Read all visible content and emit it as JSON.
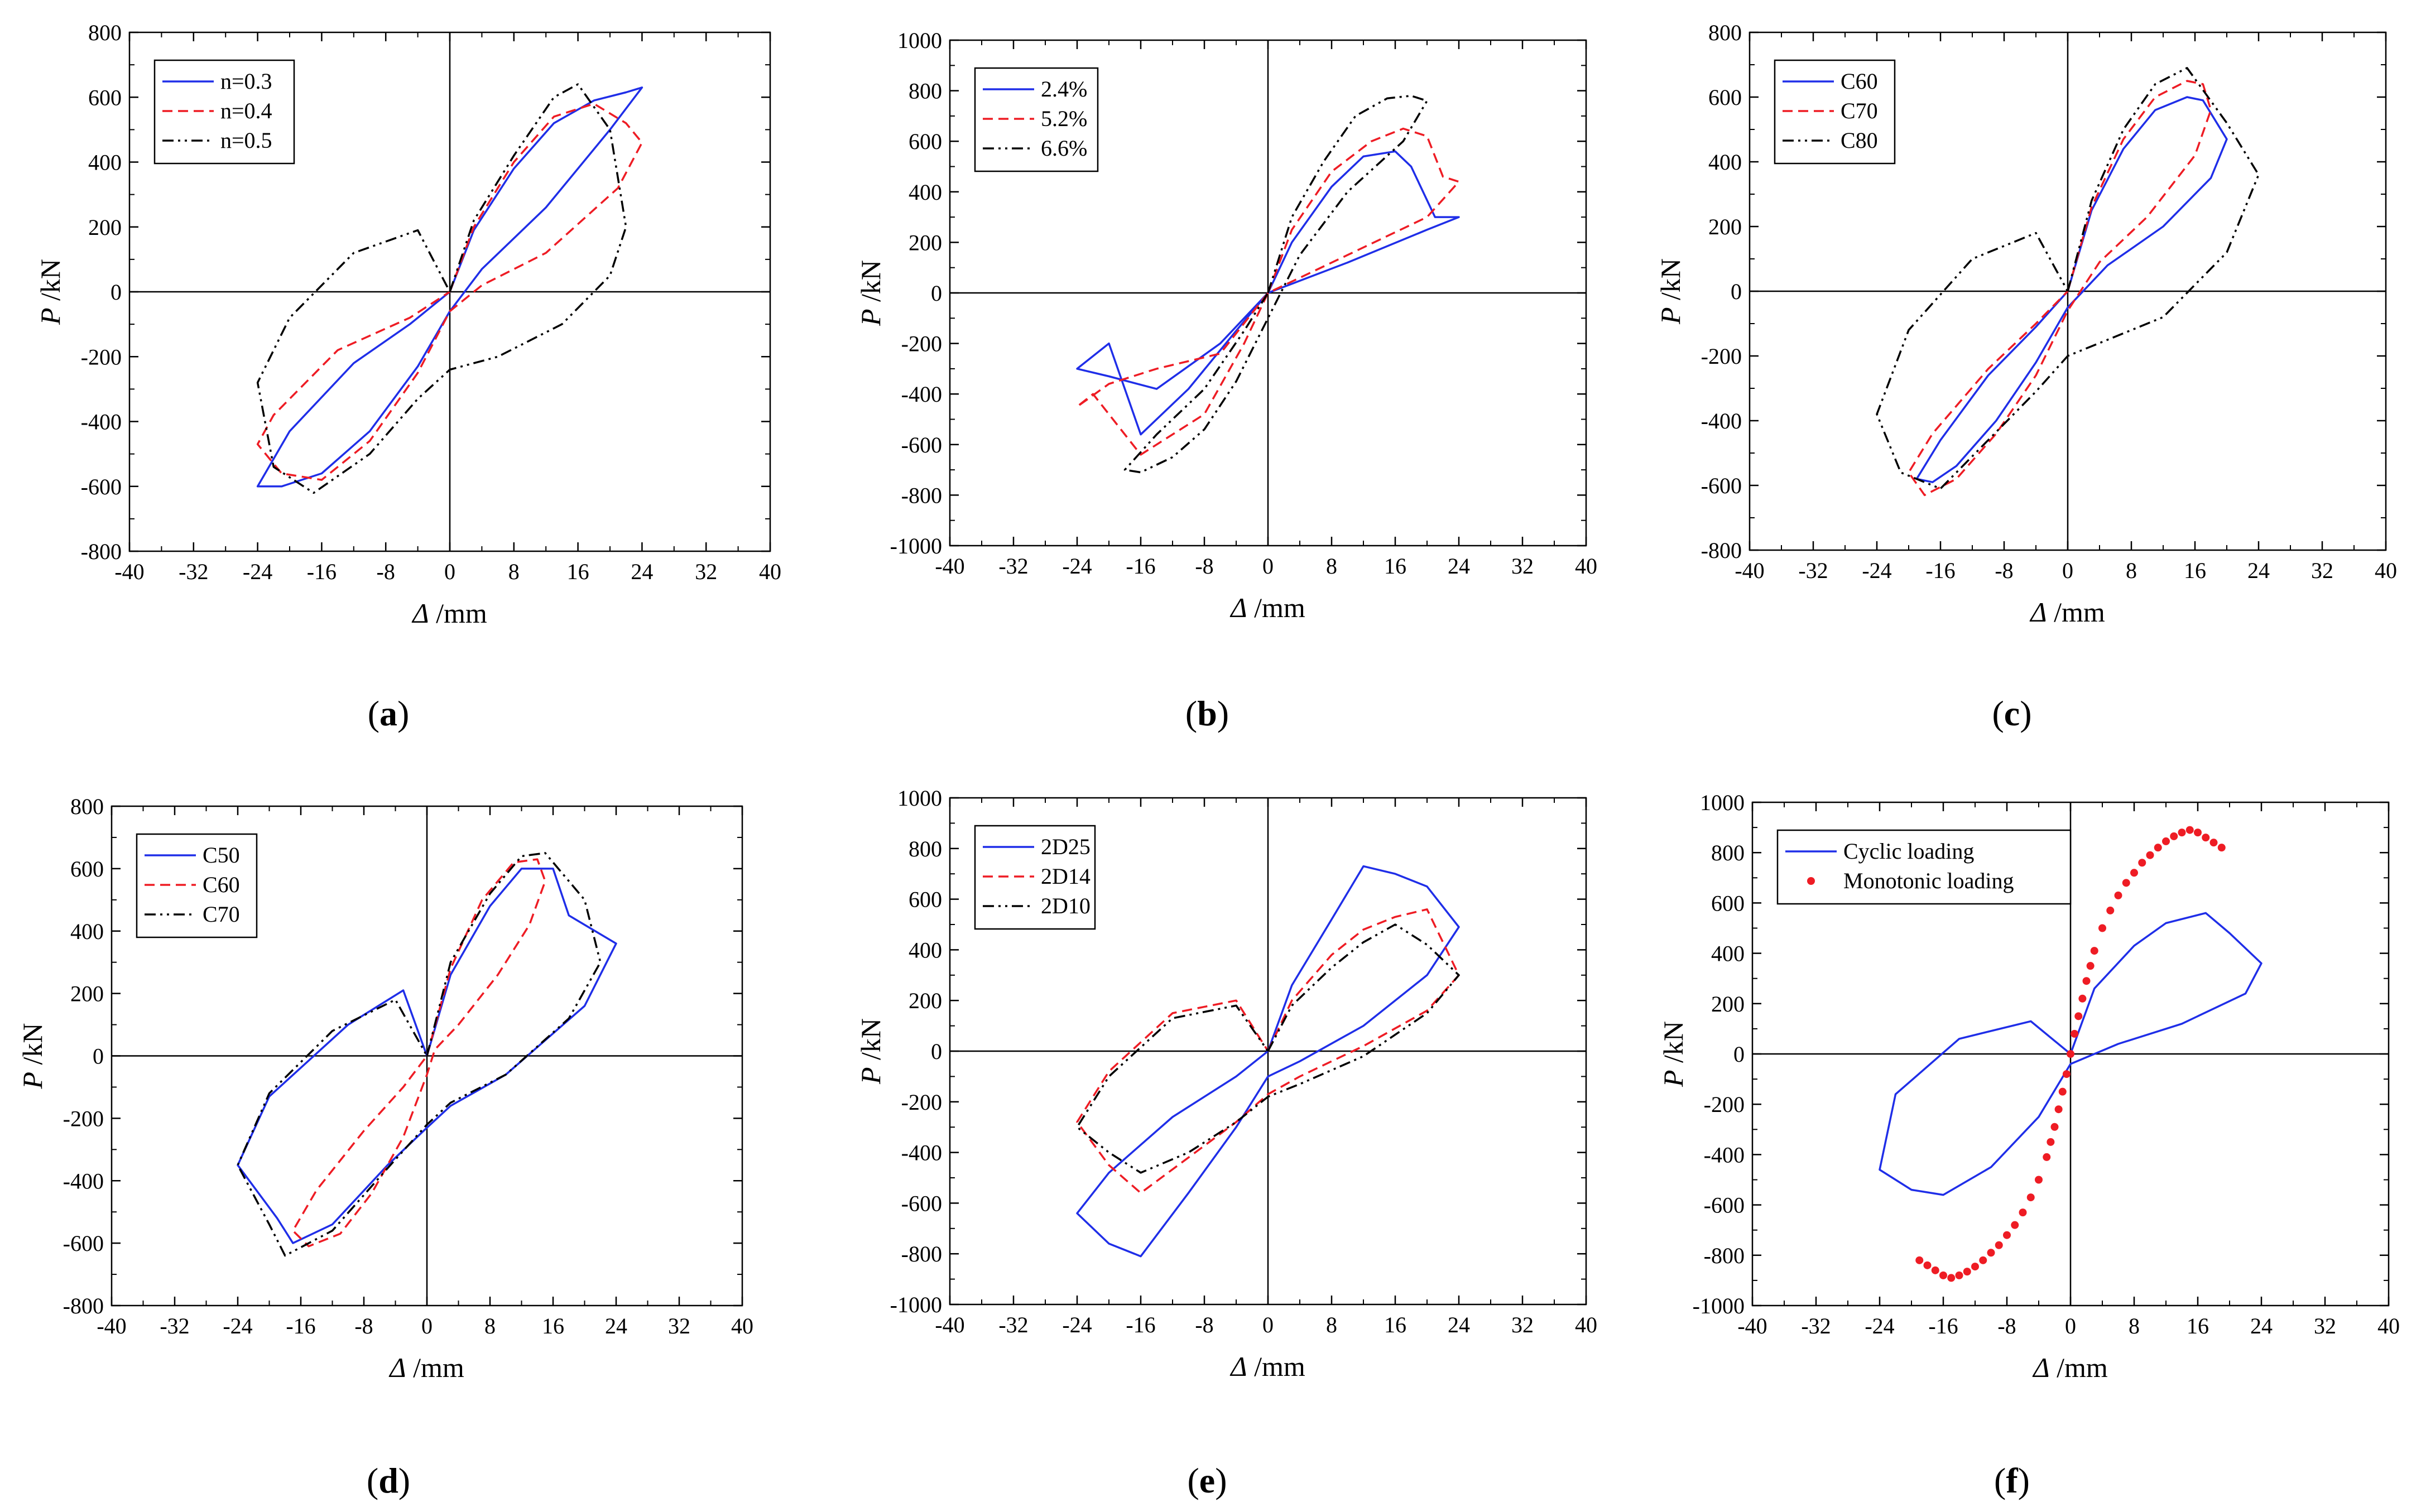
{
  "colors": {
    "blue": "#1f2ee8",
    "red": "#ee1c24",
    "black": "#000000"
  },
  "chart_data": [
    {
      "panel": "a",
      "type": "line",
      "x_symbol": "Δ",
      "x_unit": "/mm",
      "y_symbol": "P",
      "y_unit": "/kN",
      "xlim": [
        -40,
        40
      ],
      "ylim": [
        -800,
        800
      ],
      "xticks": [
        "-40",
        "-32",
        "-24",
        "-16",
        "-8",
        "0",
        "8",
        "16",
        "24",
        "32",
        "40"
      ],
      "yticks": [
        "-800",
        "-600",
        "-400",
        "-200",
        "0",
        "200",
        "400",
        "600",
        "800"
      ],
      "legend_position": "top-left",
      "series": [
        {
          "name": "n=0.3",
          "color": "#1f2ee8",
          "style": "solid",
          "x": [
            0,
            3,
            8,
            13,
            18,
            22,
            24,
            20,
            12,
            4,
            0,
            -4,
            -10,
            -16,
            -21,
            -24,
            -20,
            -12,
            -5,
            0
          ],
          "y": [
            0,
            190,
            380,
            520,
            590,
            615,
            630,
            500,
            260,
            70,
            -60,
            -230,
            -430,
            -560,
            -600,
            -600,
            -430,
            -220,
            -100,
            0
          ]
        },
        {
          "name": "n=0.4",
          "color": "#ee1c24",
          "style": "dashed",
          "x": [
            0,
            3,
            8,
            13,
            18,
            22,
            24,
            21,
            12,
            4,
            0,
            -4,
            -10,
            -16,
            -21,
            -24,
            -22,
            -14,
            -5,
            0
          ],
          "y": [
            0,
            200,
            400,
            540,
            580,
            520,
            460,
            320,
            120,
            20,
            -60,
            -250,
            -460,
            -580,
            -560,
            -470,
            -380,
            -180,
            -80,
            0
          ]
        },
        {
          "name": "n=0.5",
          "color": "#000000",
          "style": "dashdot",
          "x": [
            0,
            3,
            8,
            13,
            16,
            20,
            22,
            20,
            14,
            6,
            0,
            -4,
            -10,
            -17,
            -22,
            -24,
            -20,
            -12,
            -4,
            0
          ],
          "y": [
            0,
            220,
            420,
            600,
            640,
            500,
            200,
            50,
            -100,
            -200,
            -240,
            -330,
            -500,
            -620,
            -540,
            -280,
            -80,
            120,
            190,
            0
          ]
        }
      ]
    },
    {
      "panel": "b",
      "type": "line",
      "x_symbol": "Δ",
      "x_unit": "/mm",
      "y_symbol": "P",
      "y_unit": "/kN",
      "xlim": [
        -40,
        40
      ],
      "ylim": [
        -1000,
        1000
      ],
      "xticks": [
        "-40",
        "-32",
        "-24",
        "-16",
        "-8",
        "0",
        "8",
        "16",
        "24",
        "32",
        "40"
      ],
      "yticks": [
        "-1000",
        "-800",
        "-600",
        "-400",
        "-200",
        "0",
        "200",
        "400",
        "600",
        "800",
        "1000"
      ],
      "legend_position": "top-left",
      "series": [
        {
          "name": "2.4%",
          "color": "#1f2ee8",
          "style": "solid",
          "x": [
            0,
            3,
            8,
            12,
            16,
            18,
            21,
            24,
            20,
            10,
            0,
            -6,
            -14,
            -20,
            -24,
            -20,
            -16,
            -10,
            -4,
            0
          ],
          "y": [
            0,
            200,
            420,
            540,
            560,
            500,
            300,
            300,
            250,
            120,
            0,
            -200,
            -380,
            -330,
            -300,
            -200,
            -560,
            -380,
            -150,
            0
          ]
        },
        {
          "name": "5.2%",
          "color": "#ee1c24",
          "style": "dashed",
          "x": [
            0,
            3,
            8,
            13,
            17,
            20,
            22,
            24,
            20,
            10,
            0,
            -6,
            -14,
            -20,
            -24,
            -22,
            -16,
            -8,
            -3,
            0
          ],
          "y": [
            0,
            250,
            480,
            600,
            650,
            620,
            460,
            440,
            300,
            150,
            0,
            -240,
            -300,
            -360,
            -450,
            -400,
            -640,
            -480,
            -200,
            0
          ]
        },
        {
          "name": "6.6%",
          "color": "#000000",
          "style": "dashdot",
          "x": [
            0,
            3,
            7,
            11,
            15,
            18,
            20,
            17,
            10,
            4,
            0,
            -4,
            -8,
            -12,
            -16,
            -18,
            -14,
            -8,
            -3,
            0
          ],
          "y": [
            0,
            300,
            520,
            700,
            770,
            780,
            760,
            600,
            400,
            150,
            -100,
            -350,
            -540,
            -650,
            -710,
            -700,
            -560,
            -380,
            -150,
            0
          ]
        }
      ]
    },
    {
      "panel": "c",
      "type": "line",
      "x_symbol": "Δ",
      "x_unit": "/mm",
      "y_symbol": "P",
      "y_unit": "/kN",
      "xlim": [
        -40,
        40
      ],
      "ylim": [
        -800,
        800
      ],
      "xticks": [
        "-40",
        "-32",
        "-24",
        "-16",
        "-8",
        "0",
        "8",
        "16",
        "24",
        "32",
        "40"
      ],
      "yticks": [
        "-800",
        "-600",
        "-400",
        "-200",
        "0",
        "200",
        "400",
        "600",
        "800"
      ],
      "legend_position": "top-left",
      "series": [
        {
          "name": "C60",
          "color": "#1f2ee8",
          "style": "solid",
          "x": [
            0,
            3,
            7,
            11,
            15,
            17,
            20,
            18,
            12,
            5,
            0,
            -4,
            -9,
            -14,
            -17,
            -19,
            -16,
            -10,
            -4,
            0
          ],
          "y": [
            0,
            250,
            440,
            560,
            600,
            590,
            470,
            350,
            200,
            80,
            -50,
            -220,
            -400,
            -540,
            -590,
            -580,
            -460,
            -260,
            -110,
            0
          ]
        },
        {
          "name": "C70",
          "color": "#ee1c24",
          "style": "dashed",
          "x": [
            0,
            3,
            7,
            11,
            15,
            17,
            18,
            16,
            10,
            4,
            0,
            -4,
            -9,
            -14,
            -18,
            -20,
            -17,
            -10,
            -4,
            0
          ],
          "y": [
            0,
            260,
            470,
            600,
            650,
            640,
            560,
            420,
            230,
            90,
            -60,
            -260,
            -440,
            -580,
            -630,
            -560,
            -440,
            -240,
            -100,
            0
          ]
        },
        {
          "name": "C80",
          "color": "#000000",
          "style": "dashdot",
          "x": [
            0,
            3,
            7,
            11,
            15,
            20,
            24,
            20,
            12,
            5,
            0,
            -4,
            -10,
            -16,
            -21,
            -24,
            -20,
            -12,
            -4,
            0
          ],
          "y": [
            0,
            280,
            500,
            640,
            690,
            520,
            360,
            120,
            -80,
            -150,
            -200,
            -310,
            -460,
            -610,
            -560,
            -380,
            -120,
            100,
            180,
            0
          ]
        }
      ]
    },
    {
      "panel": "d",
      "type": "line",
      "x_symbol": "Δ",
      "x_unit": "/mm",
      "y_symbol": "P",
      "y_unit": "/kN",
      "xlim": [
        -40,
        40
      ],
      "ylim": [
        -800,
        800
      ],
      "xticks": [
        "-40",
        "-32",
        "-24",
        "-16",
        "-8",
        "0",
        "8",
        "16",
        "24",
        "32",
        "40"
      ],
      "yticks": [
        "-800",
        "-600",
        "-400",
        "-200",
        "0",
        "200",
        "400",
        "600",
        "800"
      ],
      "legend_position": "top-left",
      "series": [
        {
          "name": "C50",
          "color": "#1f2ee8",
          "style": "solid",
          "x": [
            0,
            3,
            8,
            12,
            16,
            18,
            24,
            20,
            10,
            3,
            0,
            -5,
            -12,
            -17,
            -19,
            -24,
            -20,
            -10,
            -3,
            0
          ],
          "y": [
            0,
            260,
            480,
            600,
            600,
            450,
            360,
            160,
            -60,
            -160,
            -230,
            -350,
            -540,
            -600,
            -520,
            -350,
            -130,
            100,
            210,
            0
          ]
        },
        {
          "name": "C60",
          "color": "#ee1c24",
          "style": "dashed",
          "x": [
            0,
            3,
            7,
            11,
            14,
            15,
            13,
            9,
            4,
            1,
            0,
            -3,
            -7,
            -11,
            -15,
            -17,
            -14,
            -8,
            -3,
            0
          ],
          "y": [
            0,
            280,
            500,
            620,
            630,
            560,
            420,
            260,
            100,
            20,
            -60,
            -260,
            -440,
            -570,
            -610,
            -560,
            -430,
            -240,
            -100,
            0
          ]
        },
        {
          "name": "C70",
          "color": "#000000",
          "style": "dashdot",
          "x": [
            0,
            3,
            8,
            12,
            15,
            20,
            22,
            18,
            10,
            3,
            0,
            -5,
            -12,
            -18,
            -20,
            -24,
            -20,
            -12,
            -4,
            0
          ],
          "y": [
            0,
            300,
            520,
            640,
            650,
            500,
            300,
            120,
            -60,
            -150,
            -220,
            -360,
            -560,
            -640,
            -540,
            -350,
            -120,
            80,
            180,
            0
          ]
        }
      ]
    },
    {
      "panel": "e",
      "type": "line",
      "x_symbol": "Δ",
      "x_unit": "/mm",
      "y_symbol": "P",
      "y_unit": "/kN",
      "xlim": [
        -40,
        40
      ],
      "ylim": [
        -1000,
        1000
      ],
      "xticks": [
        "-40",
        "-32",
        "-24",
        "-16",
        "-8",
        "0",
        "8",
        "16",
        "24",
        "32",
        "40"
      ],
      "yticks": [
        "-1000",
        "-800",
        "-600",
        "-400",
        "-200",
        "0",
        "200",
        "400",
        "600",
        "800",
        "1000"
      ],
      "legend_position": "top-left",
      "series": [
        {
          "name": "2D25",
          "color": "#1f2ee8",
          "style": "solid",
          "x": [
            0,
            3,
            8,
            12,
            16,
            20,
            24,
            20,
            12,
            4,
            0,
            -4,
            -10,
            -16,
            -20,
            -24,
            -20,
            -12,
            -4,
            0
          ],
          "y": [
            0,
            260,
            520,
            730,
            700,
            650,
            490,
            300,
            100,
            -40,
            -100,
            -300,
            -560,
            -810,
            -760,
            -640,
            -480,
            -260,
            -100,
            0
          ]
        },
        {
          "name": "2D14",
          "color": "#ee1c24",
          "style": "dashed",
          "x": [
            0,
            3,
            8,
            12,
            16,
            20,
            24,
            20,
            12,
            4,
            0,
            -4,
            -10,
            -16,
            -20,
            -24,
            -20,
            -12,
            -4,
            0
          ],
          "y": [
            0,
            200,
            380,
            480,
            530,
            560,
            300,
            160,
            20,
            -100,
            -170,
            -280,
            -420,
            -560,
            -450,
            -280,
            -80,
            150,
            200,
            0
          ]
        },
        {
          "name": "2D10",
          "color": "#000000",
          "style": "dashdot",
          "x": [
            0,
            3,
            8,
            12,
            16,
            20,
            24,
            20,
            12,
            4,
            0,
            -4,
            -10,
            -16,
            -20,
            -24,
            -20,
            -12,
            -4,
            0
          ],
          "y": [
            0,
            180,
            330,
            430,
            500,
            420,
            300,
            150,
            -20,
            -130,
            -180,
            -280,
            -400,
            -480,
            -400,
            -300,
            -100,
            130,
            180,
            0
          ]
        }
      ]
    },
    {
      "panel": "f",
      "type": "line",
      "x_symbol": "Δ",
      "x_unit": "/mm",
      "y_symbol": "P",
      "y_unit": "/kN",
      "xlim": [
        -40,
        40
      ],
      "ylim": [
        -1000,
        1000
      ],
      "xticks": [
        "-40",
        "-32",
        "-24",
        "-16",
        "-8",
        "0",
        "8",
        "16",
        "24",
        "32",
        "40"
      ],
      "yticks": [
        "-1000",
        "-800",
        "-600",
        "-400",
        "-200",
        "0",
        "200",
        "400",
        "600",
        "800",
        "1000"
      ],
      "legend_position": "top-left",
      "series": [
        {
          "name": "Cyclic loading",
          "color": "#1f2ee8",
          "style": "solid",
          "x": [
            0,
            3,
            8,
            12,
            17,
            20,
            24,
            22,
            14,
            6,
            0,
            -4,
            -10,
            -16,
            -20,
            -24,
            -22,
            -14,
            -5,
            0
          ],
          "y": [
            0,
            260,
            430,
            520,
            560,
            480,
            360,
            240,
            120,
            40,
            -40,
            -250,
            -450,
            -560,
            -540,
            -460,
            -160,
            60,
            130,
            0
          ]
        },
        {
          "name": "Monotonic loading",
          "color": "#ee1c24",
          "style": "markers",
          "x": [
            0,
            0.5,
            1,
            1.5,
            2,
            2.5,
            3,
            4,
            5,
            6,
            7,
            8,
            9,
            10,
            11,
            12,
            13,
            14,
            15,
            16,
            17,
            18,
            19,
            -0.5,
            -1,
            -1.5,
            -2,
            -2.5,
            -3,
            -4,
            -5,
            -6,
            -7,
            -8,
            -9,
            -10,
            -11,
            -12,
            -13,
            -14,
            -15,
            -16,
            -17,
            -18,
            -19
          ],
          "y": [
            0,
            80,
            150,
            220,
            290,
            350,
            410,
            500,
            570,
            630,
            680,
            720,
            760,
            790,
            820,
            845,
            865,
            880,
            890,
            880,
            860,
            840,
            820,
            -80,
            -150,
            -220,
            -290,
            -350,
            -410,
            -500,
            -570,
            -630,
            -680,
            -720,
            -760,
            -790,
            -820,
            -845,
            -865,
            -880,
            -890,
            -880,
            -860,
            -840,
            -820
          ]
        }
      ]
    }
  ],
  "panels": [
    {
      "label": "a"
    },
    {
      "label": "b"
    },
    {
      "label": "c"
    },
    {
      "label": "d"
    },
    {
      "label": "e"
    },
    {
      "label": "f"
    }
  ]
}
